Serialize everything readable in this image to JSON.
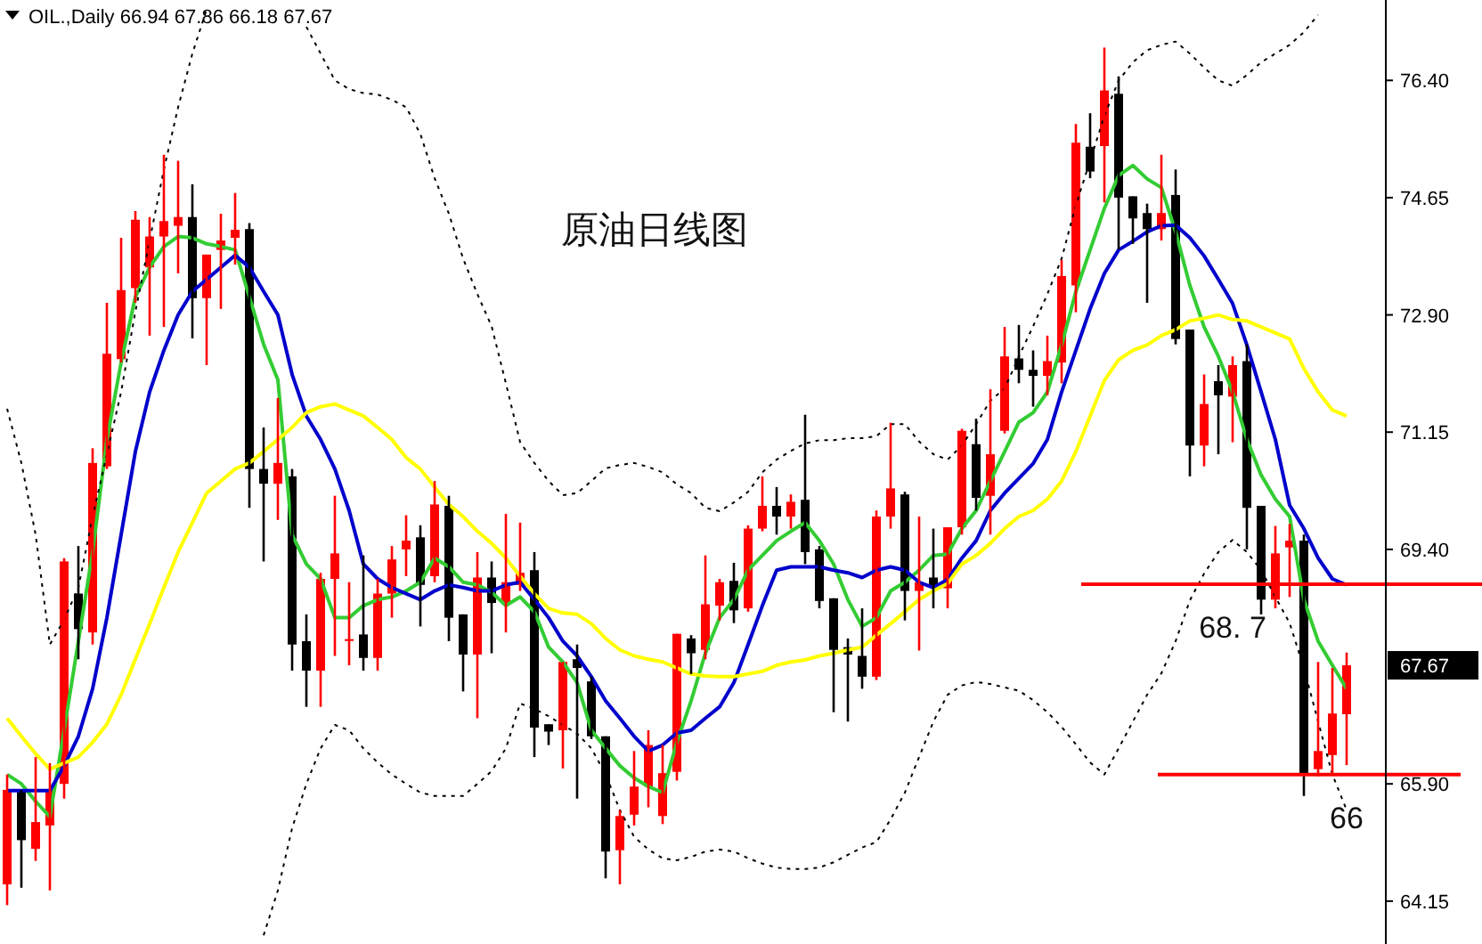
{
  "chart_data": {
    "type": "candlestick",
    "title": "原油日线图",
    "subtitle": "OIL.,Daily 66.94 67.86 66.18 67.67",
    "categories": [
      null,
      null,
      null,
      null,
      null,
      null,
      null,
      null,
      null,
      null,
      null,
      null,
      null,
      null,
      null,
      null,
      null,
      null,
      null,
      null,
      null,
      null,
      null,
      null,
      null,
      null,
      null,
      null,
      null,
      null,
      null,
      null,
      null,
      null,
      null,
      null,
      null,
      null,
      null,
      null,
      null,
      null,
      null,
      null,
      null,
      null,
      null,
      null,
      null,
      null,
      null,
      null,
      null,
      null,
      null,
      null,
      null,
      null,
      null,
      null,
      null,
      null,
      null,
      null,
      null,
      null,
      null,
      null,
      null,
      null,
      null,
      null,
      null,
      null,
      null,
      null,
      null,
      null,
      null,
      null,
      null,
      null,
      null,
      null,
      null,
      null,
      null,
      null,
      null,
      null,
      null,
      null,
      null,
      null,
      null
    ],
    "ohlc": [
      [
        64.4,
        66.04,
        64.09,
        65.81
      ],
      [
        65.81,
        65.81,
        64.35,
        65.06
      ],
      [
        64.93,
        66.3,
        64.75,
        65.33
      ],
      [
        65.28,
        66.21,
        64.31,
        65.81
      ],
      [
        65.9,
        69.27,
        65.68,
        69.22
      ],
      [
        68.74,
        69.45,
        67.76,
        68.21
      ],
      [
        68.16,
        70.91,
        67.98,
        70.69
      ],
      [
        70.64,
        73.08,
        70.6,
        72.32
      ],
      [
        72.24,
        74.05,
        72.19,
        73.27
      ],
      [
        73.3,
        74.45,
        73.08,
        74.32
      ],
      [
        73.61,
        74.36,
        72.59,
        74.07
      ],
      [
        74.07,
        75.29,
        72.72,
        74.3
      ],
      [
        74.23,
        75.2,
        73.52,
        74.36
      ],
      [
        74.36,
        74.85,
        72.55,
        73.15
      ],
      [
        73.15,
        73.8,
        72.15,
        73.8
      ],
      [
        73.87,
        74.41,
        72.99,
        74.01
      ],
      [
        74.05,
        74.72,
        73.65,
        74.17
      ],
      [
        74.18,
        74.27,
        70.02,
        70.6
      ],
      [
        70.6,
        71.22,
        69.22,
        70.38
      ],
      [
        70.38,
        71.66,
        69.84,
        70.69
      ],
      [
        70.49,
        70.6,
        67.59,
        67.98
      ],
      [
        68.03,
        68.43,
        67.05,
        67.59
      ],
      [
        67.59,
        69.05,
        67.05,
        68.96
      ],
      [
        68.96,
        70.2,
        67.81,
        69.34
      ],
      [
        68.04,
        68.91,
        67.67,
        68.06
      ],
      [
        68.13,
        69.31,
        67.59,
        67.78
      ],
      [
        67.78,
        68.96,
        67.59,
        68.74
      ],
      [
        68.74,
        69.45,
        68.38,
        69.25
      ],
      [
        69.4,
        69.91,
        69.0,
        69.53
      ],
      [
        69.58,
        69.76,
        68.25,
        68.87
      ],
      [
        69.0,
        70.42,
        68.91,
        70.07
      ],
      [
        70.05,
        70.2,
        68.03,
        68.38
      ],
      [
        68.43,
        68.43,
        67.28,
        67.83
      ],
      [
        67.83,
        69.36,
        66.88,
        68.98
      ],
      [
        68.98,
        69.22,
        67.85,
        68.6
      ],
      [
        68.6,
        69.93,
        68.16,
        68.91
      ],
      [
        68.87,
        69.8,
        68.78,
        69.05
      ],
      [
        69.09,
        69.36,
        66.3,
        66.74
      ],
      [
        66.79,
        66.79,
        66.48,
        66.68
      ],
      [
        66.7,
        67.72,
        66.13,
        67.72
      ],
      [
        67.76,
        67.98,
        65.68,
        67.63
      ],
      [
        67.43,
        67.5,
        66.57,
        66.61
      ],
      [
        66.61,
        66.61,
        64.49,
        64.89
      ],
      [
        64.91,
        65.51,
        64.4,
        65.42
      ],
      [
        65.44,
        66.39,
        65.28,
        65.86
      ],
      [
        65.86,
        66.7,
        65.55,
        66.48
      ],
      [
        65.42,
        66.48,
        65.3,
        66.06
      ],
      [
        66.08,
        68.14,
        65.95,
        68.14
      ],
      [
        68.07,
        68.12,
        67.54,
        67.85
      ],
      [
        67.9,
        69.31,
        67.76,
        68.58
      ],
      [
        68.56,
        68.96,
        68.34,
        68.91
      ],
      [
        68.93,
        69.2,
        68.3,
        68.49
      ],
      [
        68.52,
        69.76,
        68.47,
        69.71
      ],
      [
        69.71,
        70.49,
        69.67,
        70.05
      ],
      [
        70.05,
        70.33,
        69.62,
        69.89
      ],
      [
        69.89,
        70.22,
        69.71,
        70.11
      ],
      [
        70.14,
        71.41,
        69.18,
        69.36
      ],
      [
        69.4,
        69.45,
        68.52,
        68.63
      ],
      [
        68.67,
        68.67,
        66.97,
        67.9
      ],
      [
        67.94,
        68.07,
        66.83,
        67.83
      ],
      [
        67.81,
        68.52,
        67.32,
        67.5
      ],
      [
        67.5,
        69.98,
        67.45,
        69.89
      ],
      [
        69.89,
        71.29,
        69.71,
        70.31
      ],
      [
        70.22,
        70.26,
        68.34,
        68.78
      ],
      [
        68.78,
        69.89,
        67.89,
        68.91
      ],
      [
        68.98,
        69.71,
        68.52,
        68.84
      ],
      [
        68.82,
        69.73,
        68.52,
        69.73
      ],
      [
        69.73,
        71.2,
        69.62,
        71.17
      ],
      [
        70.97,
        71.35,
        69.98,
        70.17
      ],
      [
        70.2,
        71.79,
        69.62,
        70.82
      ],
      [
        71.17,
        72.72,
        71.13,
        72.28
      ],
      [
        72.25,
        72.75,
        71.88,
        72.08
      ],
      [
        72.08,
        72.37,
        71.53,
        71.99
      ],
      [
        71.99,
        72.59,
        71.7,
        72.21
      ],
      [
        72.19,
        73.72,
        71.88,
        73.48
      ],
      [
        73.34,
        75.75,
        72.94,
        75.47
      ],
      [
        75.41,
        75.91,
        74.94,
        75.04
      ],
      [
        75.42,
        76.89,
        74.58,
        76.25
      ],
      [
        76.2,
        76.46,
        73.88,
        74.65
      ],
      [
        74.67,
        74.67,
        73.96,
        74.34
      ],
      [
        74.42,
        74.56,
        73.08,
        74.18
      ],
      [
        74.18,
        75.29,
        74.01,
        74.42
      ],
      [
        74.69,
        75.07,
        72.46,
        72.54
      ],
      [
        72.68,
        72.68,
        70.49,
        70.95
      ],
      [
        70.95,
        72.01,
        70.64,
        71.57
      ],
      [
        71.91,
        72.15,
        70.82,
        71.7
      ],
      [
        71.68,
        72.28,
        71.0,
        72.15
      ],
      [
        72.21,
        72.46,
        69.4,
        70.02
      ],
      [
        70.05,
        70.05,
        68.43,
        68.65
      ],
      [
        68.65,
        69.75,
        68.52,
        69.34
      ],
      [
        69.43,
        69.78,
        68.69,
        69.53
      ],
      [
        69.53,
        69.62,
        65.72,
        66.04
      ],
      [
        66.12,
        67.72,
        66.01,
        66.39
      ],
      [
        66.33,
        67.63,
        66.04,
        66.95
      ],
      [
        66.94,
        67.86,
        66.18,
        67.67
      ]
    ],
    "colors": [
      "#ff0000",
      "#000000",
      "#ff0000",
      "#ff0000",
      "#ff0000",
      "#000000",
      "#ff0000",
      "#ff0000",
      "#ff0000",
      "#ff0000",
      "#ff0000",
      "#ff0000",
      "#ff0000",
      "#000000",
      "#ff0000",
      "#ff0000",
      "#ff0000",
      "#000000",
      "#000000",
      "#ff0000",
      "#000000",
      "#000000",
      "#ff0000",
      "#ff0000",
      "#ff0000",
      "#000000",
      "#ff0000",
      "#ff0000",
      "#ff0000",
      "#000000",
      "#ff0000",
      "#000000",
      "#000000",
      "#ff0000",
      "#000000",
      "#ff0000",
      "#ff0000",
      "#000000",
      "#000000",
      "#ff0000",
      "#000000",
      "#000000",
      "#000000",
      "#ff0000",
      "#ff0000",
      "#ff0000",
      "#ff0000",
      "#ff0000",
      "#000000",
      "#ff0000",
      "#ff0000",
      "#000000",
      "#ff0000",
      "#ff0000",
      "#000000",
      "#ff0000",
      "#000000",
      "#000000",
      "#000000",
      "#000000",
      "#000000",
      "#ff0000",
      "#ff0000",
      "#000000",
      "#ff0000",
      "#000000",
      "#ff0000",
      "#ff0000",
      "#000000",
      "#ff0000",
      "#ff0000",
      "#000000",
      "#000000",
      "#ff0000",
      "#ff0000",
      "#ff0000",
      "#000000",
      "#ff0000",
      "#000000",
      "#000000",
      "#000000",
      "#ff0000",
      "#000000",
      "#000000",
      "#ff0000",
      "#000000",
      "#ff0000",
      "#000000",
      "#000000",
      "#ff0000",
      "#ff0000",
      "#000000",
      "#ff0000",
      "#ff0000",
      "#ff0000"
    ],
    "series": [
      {
        "type": "line",
        "color": "#33cc33",
        "line_style": "solid",
        "values": [
          66.04,
          65.9,
          65.64,
          65.41,
          66.7,
          68.03,
          69.36,
          71.04,
          72.19,
          73.17,
          73.61,
          73.92,
          74.07,
          74.05,
          73.96,
          73.92,
          73.87,
          73.17,
          72.46,
          71.93,
          69.62,
          69.18,
          68.96,
          68.38,
          68.38,
          68.56,
          68.65,
          68.69,
          68.78,
          68.91,
          69.27,
          69.14,
          68.91,
          68.87,
          68.76,
          68.56,
          68.69,
          68.47,
          67.94,
          67.72,
          67.41,
          66.7,
          66.43,
          66.17,
          65.99,
          65.86,
          65.77,
          66.52,
          67.14,
          67.85,
          68.38,
          68.65,
          69.09,
          69.31,
          69.53,
          69.67,
          69.8,
          69.53,
          69.18,
          68.65,
          68.25,
          68.38,
          68.78,
          68.91,
          69.09,
          69.31,
          69.33,
          69.71,
          69.98,
          70.42,
          70.86,
          71.3,
          71.44,
          71.75,
          72.45,
          73.25,
          73.87,
          74.49,
          74.98,
          75.13,
          74.93,
          74.8,
          74.14,
          73.34,
          72.72,
          72.28,
          71.75,
          71.04,
          70.51,
          70.15,
          69.89,
          68.65,
          68.03,
          67.67,
          67.32
        ]
      },
      {
        "type": "line",
        "color": "#0000cc",
        "line_style": "solid",
        "values": [
          65.8,
          65.8,
          65.8,
          65.8,
          66.17,
          66.61,
          67.32,
          68.38,
          69.62,
          70.86,
          71.75,
          72.37,
          72.9,
          73.25,
          73.43,
          73.61,
          73.79,
          73.61,
          73.25,
          72.9,
          72.01,
          71.39,
          71.04,
          70.6,
          69.98,
          69.18,
          68.96,
          68.83,
          68.74,
          68.65,
          68.78,
          68.87,
          68.83,
          68.78,
          68.78,
          68.87,
          68.91,
          68.65,
          68.38,
          68.03,
          67.81,
          67.5,
          67.14,
          66.88,
          66.61,
          66.39,
          66.48,
          66.66,
          66.7,
          66.88,
          67.05,
          67.41,
          67.98,
          68.56,
          69.09,
          69.14,
          69.14,
          69.14,
          69.09,
          69.05,
          68.98,
          69.09,
          69.14,
          69.09,
          68.91,
          68.83,
          68.95,
          69.27,
          69.53,
          69.98,
          70.24,
          70.46,
          70.68,
          71.04,
          71.75,
          72.37,
          72.99,
          73.52,
          73.87,
          74.0,
          74.14,
          74.23,
          74.24,
          74.05,
          73.78,
          73.43,
          73.07,
          72.45,
          71.75,
          71.04,
          70.06,
          69.71,
          69.27,
          68.96,
          68.87
        ]
      },
      {
        "type": "line",
        "color": "#ffff00",
        "line_style": "solid",
        "values": [
          66.88,
          66.61,
          66.35,
          66.12,
          66.21,
          66.3,
          66.52,
          66.79,
          67.23,
          67.76,
          68.29,
          68.83,
          69.36,
          69.8,
          70.24,
          70.42,
          70.6,
          70.69,
          70.86,
          71.04,
          71.22,
          71.44,
          71.53,
          71.57,
          71.48,
          71.39,
          71.22,
          71.04,
          70.77,
          70.6,
          70.33,
          70.07,
          69.89,
          69.67,
          69.49,
          69.27,
          69.0,
          68.74,
          68.52,
          68.45,
          68.43,
          68.29,
          68.07,
          67.9,
          67.81,
          67.76,
          67.72,
          67.63,
          67.54,
          67.51,
          67.5,
          67.5,
          67.54,
          67.58,
          67.67,
          67.72,
          67.75,
          67.81,
          67.85,
          67.9,
          67.94,
          68.12,
          68.29,
          68.47,
          68.65,
          68.78,
          68.89,
          69.18,
          69.31,
          69.49,
          69.71,
          69.89,
          69.98,
          70.15,
          70.42,
          70.86,
          71.39,
          71.92,
          72.23,
          72.37,
          72.45,
          72.59,
          72.68,
          72.81,
          72.85,
          72.9,
          72.83,
          72.81,
          72.72,
          72.63,
          72.54,
          72.1,
          71.75,
          71.48,
          71.39
        ]
      },
      {
        "type": "line",
        "color": "#000000",
        "line_style": "dotted",
        "values": [
          71.5,
          70.69,
          69.62,
          67.98,
          68.35,
          68.83,
          69.89,
          70.82,
          71.75,
          72.95,
          74.01,
          75.07,
          76.0,
          76.8,
          77.46,
          null,
          null,
          null,
          null,
          null,
          null,
          77.2,
          76.8,
          76.4,
          76.27,
          76.21,
          76.19,
          76.11,
          76.0,
          75.6,
          74.94,
          74.41,
          73.74,
          73.21,
          72.73,
          71.88,
          71.0,
          70.69,
          70.42,
          70.21,
          70.24,
          70.42,
          70.61,
          70.66,
          70.69,
          70.63,
          70.55,
          70.37,
          70.24,
          70.02,
          69.97,
          70.1,
          70.26,
          70.55,
          70.74,
          70.87,
          70.98,
          71.03,
          71.03,
          71.06,
          71.06,
          71.09,
          71.27,
          71.27,
          71.01,
          70.82,
          70.74,
          70.95,
          71.27,
          71.62,
          71.8,
          72.28,
          72.73,
          73.21,
          73.74,
          74.54,
          75.2,
          75.87,
          76.4,
          76.67,
          76.85,
          76.93,
          76.98,
          76.8,
          76.59,
          76.4,
          76.32,
          76.48,
          76.67,
          76.8,
          76.93,
          77.12,
          77.38,
          null,
          null
        ]
      },
      {
        "type": "line",
        "color": "#000000",
        "line_style": "dotted",
        "values": [
          null,
          null,
          null,
          null,
          null,
          null,
          null,
          null,
          null,
          null,
          null,
          null,
          null,
          null,
          null,
          null,
          null,
          null,
          63.64,
          64.31,
          65.24,
          65.9,
          66.43,
          66.78,
          66.7,
          66.43,
          66.22,
          66.04,
          65.9,
          65.77,
          65.72,
          65.72,
          65.72,
          65.9,
          66.09,
          66.43,
          67.1,
          67.02,
          66.91,
          66.78,
          66.65,
          66.43,
          66.04,
          65.51,
          65.11,
          64.92,
          64.79,
          64.76,
          64.81,
          64.89,
          64.92,
          64.89,
          64.79,
          64.71,
          64.65,
          64.63,
          64.63,
          64.65,
          64.73,
          64.84,
          64.95,
          65.03,
          65.37,
          65.77,
          66.3,
          66.83,
          67.23,
          67.37,
          67.42,
          67.39,
          67.34,
          67.29,
          67.15,
          66.97,
          66.75,
          66.49,
          66.22,
          66.04,
          66.43,
          66.83,
          67.23,
          67.55,
          68.03,
          68.64,
          69.04,
          69.36,
          69.54,
          69.36,
          69.09,
          68.69,
          68.3,
          67.63,
          66.83,
          66.04,
          65.51
        ]
      }
    ],
    "ylim": [
      63.51,
      77.6
    ],
    "yticks": [
      {
        "value": 76.4,
        "label": "76.40"
      },
      {
        "value": 74.65,
        "label": "74.65"
      },
      {
        "value": 72.9,
        "label": "72.90"
      },
      {
        "value": 71.15,
        "label": "71.15"
      },
      {
        "value": 69.4,
        "label": "69.40"
      },
      {
        "value": 65.9,
        "label": "65.90"
      },
      {
        "value": 64.15,
        "label": "64.15"
      }
    ],
    "ref_lines": [
      {
        "axis": "y",
        "value": 68.88,
        "color": "#ff0000"
      },
      {
        "axis": "y",
        "value": 66.04,
        "color": "#ff0000"
      }
    ],
    "annotations": [
      "67.67",
      "68. 7",
      "66"
    ],
    "grid": false
  }
}
